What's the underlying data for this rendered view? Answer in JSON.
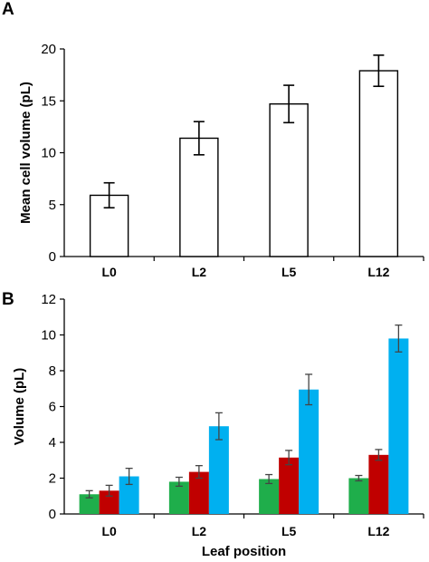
{
  "chart_data": [
    {
      "panel": "A",
      "type": "bar",
      "categories": [
        "L0",
        "L2",
        "L5",
        "L12"
      ],
      "values": [
        5.9,
        11.4,
        14.7,
        17.9
      ],
      "errors": [
        1.2,
        1.6,
        1.8,
        1.5
      ],
      "xlabel": "",
      "ylabel": "Mean cell volume (pL)",
      "ylim": [
        0,
        20
      ],
      "yticks": [
        0,
        5,
        10,
        15,
        20
      ],
      "bar_color": "#ffffff",
      "grid": false
    },
    {
      "panel": "B",
      "type": "bar",
      "categories": [
        "L0",
        "L2",
        "L5",
        "L12"
      ],
      "series": [
        {
          "color": "#1fae4b",
          "values": [
            1.1,
            1.8,
            1.95,
            2.0
          ],
          "errors": [
            0.2,
            0.25,
            0.25,
            0.15
          ]
        },
        {
          "color": "#c00000",
          "values": [
            1.3,
            2.35,
            3.15,
            3.3
          ],
          "errors": [
            0.3,
            0.35,
            0.4,
            0.3
          ]
        },
        {
          "color": "#00b0f0",
          "values": [
            2.1,
            4.9,
            6.95,
            9.8
          ],
          "errors": [
            0.45,
            0.75,
            0.85,
            0.75
          ]
        }
      ],
      "xlabel": "Leaf position",
      "ylabel": "Volume (pL)",
      "ylim": [
        0,
        12
      ],
      "yticks": [
        0,
        2,
        4,
        6,
        8,
        10,
        12
      ],
      "grid": false
    }
  ]
}
